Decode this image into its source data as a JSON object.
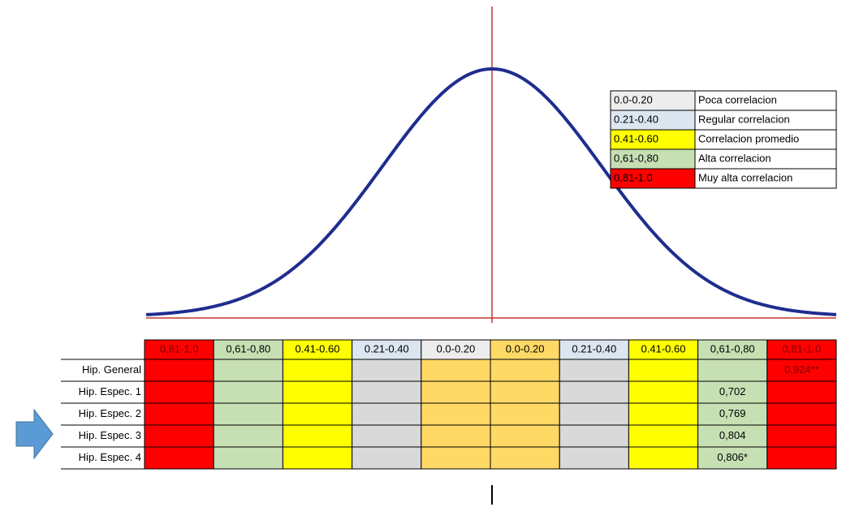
{
  "legend": {
    "rows": [
      {
        "range": "0.0-0.20",
        "label": "Poca correlacion"
      },
      {
        "range": "0.21-0.40",
        "label": "Regular correlacion"
      },
      {
        "range": "0.41-0.60",
        "label": "Correlacion promedio"
      },
      {
        "range": "0,61-0,80",
        "label": "Alta correlacion"
      },
      {
        "range": "0,81-1.0",
        "label": "Muy alta correlacion"
      }
    ]
  },
  "table": {
    "headers": [
      "0,81-1.0",
      "0,61-0,80",
      "0.41-0.60",
      "0.21-0.40",
      "0.0-0.20",
      "0.0-0.20",
      "0.21-0.40",
      "0.41-0.60",
      "0,61-0,80",
      "0,81-1.0"
    ],
    "rows": [
      {
        "label": "Hip. General",
        "value": "0,924**"
      },
      {
        "label": "Hip. Espec. 1",
        "value": "0,702"
      },
      {
        "label": "Hip. Espec. 2",
        "value": "0,769"
      },
      {
        "label": "Hip. Espec. 3",
        "value": "0,804"
      },
      {
        "label": "Hip. Espec. 4",
        "value": "0,806*"
      }
    ]
  }
}
